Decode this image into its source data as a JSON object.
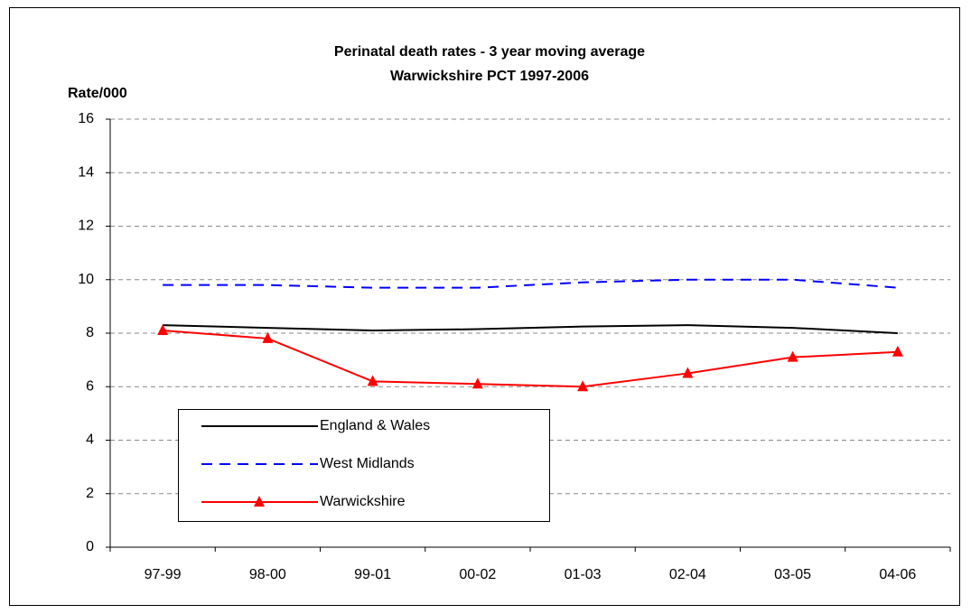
{
  "chart_data": {
    "type": "line",
    "title": "Perinatal death rates - 3 year moving average",
    "subtitle": "Warwickshire PCT 1997-2006",
    "y_label": "Rate/000",
    "categories": [
      "97-99",
      "98-00",
      "99-01",
      "00-02",
      "01-03",
      "02-04",
      "03-05",
      "04-06"
    ],
    "series": [
      {
        "name": "England & Wales",
        "color": "#000000",
        "line_style": "solid",
        "marker": "none",
        "values": [
          8.3,
          8.2,
          8.1,
          8.15,
          8.25,
          8.3,
          8.2,
          8.0
        ]
      },
      {
        "name": "West Midlands",
        "color": "#0000ff",
        "line_style": "dashed",
        "marker": "none",
        "values": [
          9.8,
          9.8,
          9.7,
          9.7,
          9.9,
          10.0,
          10.0,
          9.7
        ]
      },
      {
        "name": "Warwickshire",
        "color": "#ff0000",
        "line_style": "solid",
        "marker": "triangle",
        "values": [
          8.1,
          7.8,
          6.2,
          6.1,
          6.0,
          6.5,
          7.1,
          7.3
        ]
      }
    ],
    "ylim": [
      0,
      16
    ],
    "yticks": [
      0,
      2,
      4,
      6,
      8,
      10,
      12,
      14,
      16
    ],
    "grid": true,
    "legend": "lower left"
  }
}
